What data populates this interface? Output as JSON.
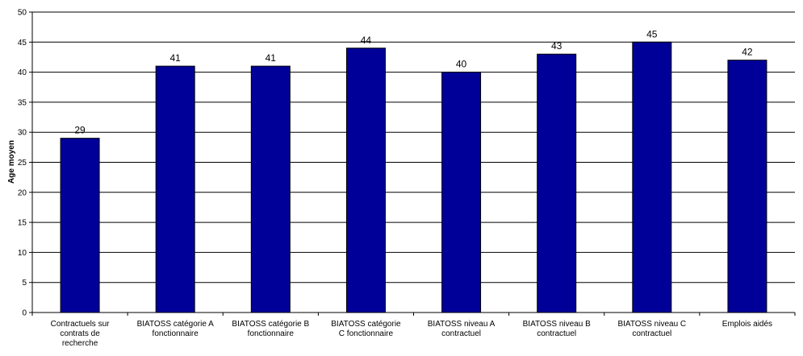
{
  "chart_data": {
    "type": "bar",
    "categories": [
      [
        "Contractuels sur",
        "contrats de",
        "recherche"
      ],
      [
        "BIATOSS catégorie A",
        "fonctionnaire"
      ],
      [
        "BIATOSS catégorie B",
        "fonctionnaire"
      ],
      [
        "BIATOSS catégorie",
        "C fonctionnaire"
      ],
      [
        "BIATOSS niveau A",
        "contractuel"
      ],
      [
        "BIATOSS niveau B",
        "contractuel"
      ],
      [
        "BIATOSS niveau C",
        "contractuel"
      ],
      [
        "Emplois aidés"
      ]
    ],
    "values": [
      29,
      41,
      41,
      44,
      40,
      43,
      45,
      42
    ],
    "title": "",
    "xlabel": "",
    "ylabel": "Age moyen",
    "ylim": [
      0,
      50
    ],
    "yticks": [
      0,
      5,
      10,
      15,
      20,
      25,
      30,
      35,
      40,
      45,
      50
    ],
    "grid": true,
    "bar_color": "#000099",
    "grid_color": "#000000"
  }
}
